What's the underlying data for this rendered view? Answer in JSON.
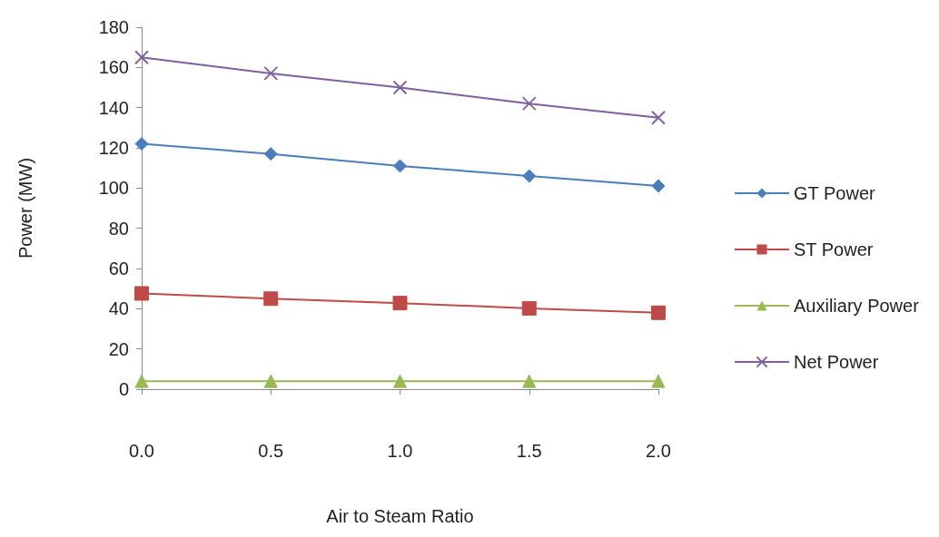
{
  "chart_data": {
    "type": "line",
    "xlabel": "Air to Steam Ratio",
    "ylabel": "Power (MW)",
    "x": [
      0,
      0.5,
      1,
      1.5,
      2
    ],
    "xlim": [
      0,
      2
    ],
    "xticks": [
      {
        "value": 0,
        "label": "0.0"
      },
      {
        "value": 0.5,
        "label": "0.5"
      },
      {
        "value": 1,
        "label": "1.0"
      },
      {
        "value": 1.5,
        "label": "1.5"
      },
      {
        "value": 2,
        "label": "2.0"
      }
    ],
    "ylim": [
      0,
      180
    ],
    "yticks": [
      0,
      20,
      40,
      60,
      80,
      100,
      120,
      140,
      160,
      180
    ],
    "grid": false,
    "legend": "right",
    "series": [
      {
        "name": "GT Power",
        "color": "#4a7ebb",
        "marker": "diamond",
        "values": [
          122,
          117,
          111,
          106,
          101
        ]
      },
      {
        "name": "ST Power",
        "color": "#be4b48",
        "marker": "square",
        "values": [
          47.6,
          45,
          42.8,
          40.2,
          38
        ]
      },
      {
        "name": "Auxiliary Power",
        "color": "#98b954",
        "marker": "triangle",
        "values": [
          4,
          4,
          4,
          4,
          4
        ]
      },
      {
        "name": "Net Power",
        "color": "#7d5fa0",
        "marker": "cross",
        "values": [
          165,
          157,
          150,
          142,
          135
        ]
      }
    ]
  }
}
